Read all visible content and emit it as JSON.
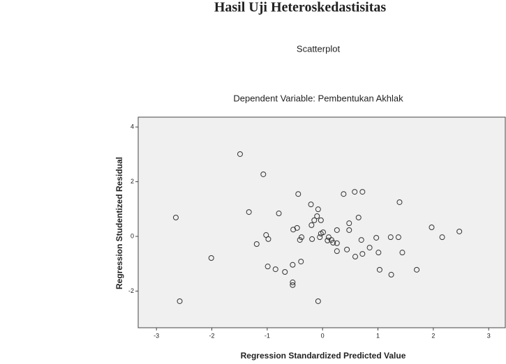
{
  "heading": "Hasil Uji Heteroskedastisitas",
  "chart_data": {
    "type": "scatter",
    "title": "Scatterplot",
    "subtitle": "Dependent Variable: Pembentukan Akhlak",
    "x_label": "Regression Standardized Predicted Value",
    "y_label": "Regression Studentized Residual",
    "color": "#333333",
    "background": "#f0f0f0",
    "xlim": [
      -3.33,
      3.3
    ],
    "ylim": [
      -3.34,
      4.36
    ],
    "xticks": [
      -3,
      -2,
      -1,
      0,
      1,
      2,
      3
    ],
    "yticks": [
      -2,
      0,
      2,
      4
    ],
    "x": [
      -2.65,
      -2.58,
      -2.01,
      -1.49,
      -1.33,
      -1.19,
      -1.07,
      -1.02,
      -0.98,
      -0.99,
      -0.85,
      -0.79,
      -0.68,
      -0.54,
      -0.53,
      -0.46,
      -0.54,
      -0.54,
      -0.44,
      -0.39,
      -0.41,
      -0.38,
      -0.21,
      -0.2,
      -0.19,
      -0.15,
      -0.1,
      -0.08,
      -0.05,
      -0.03,
      -0.03,
      0.01,
      0.09,
      0.11,
      -0.08,
      0.16,
      0.19,
      0.26,
      0.26,
      0.26,
      0.38,
      0.44,
      0.48,
      0.48,
      0.58,
      0.59,
      0.65,
      0.72,
      0.72,
      0.7,
      0.85,
      0.97,
      1.03,
      1.01,
      1.23,
      1.24,
      1.37,
      1.39,
      1.44,
      1.7,
      1.97,
      2.16,
      2.47
    ],
    "values": [
      0.69,
      -2.37,
      -0.79,
      3.01,
      0.89,
      -0.28,
      2.27,
      0.05,
      -0.1,
      -1.1,
      -1.2,
      0.84,
      -1.3,
      -1.04,
      0.25,
      0.31,
      -1.68,
      -1.78,
      1.55,
      -0.92,
      -0.13,
      -0.03,
      1.17,
      0.41,
      -0.1,
      0.59,
      0.74,
      0.99,
      -0.03,
      0.59,
      0.1,
      0.15,
      -0.15,
      -0.03,
      -2.37,
      -0.13,
      -0.23,
      -0.25,
      -0.54,
      0.23,
      1.55,
      -0.48,
      0.48,
      0.23,
      1.63,
      -0.74,
      0.69,
      -0.64,
      1.63,
      -0.13,
      -0.41,
      -0.05,
      -1.22,
      -0.59,
      -0.03,
      -1.4,
      -0.03,
      1.25,
      -0.59,
      -1.22,
      0.33,
      -0.03,
      0.18
    ]
  }
}
